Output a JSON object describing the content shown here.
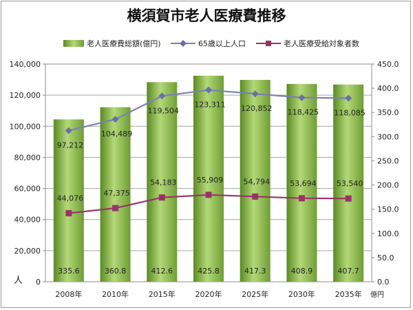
{
  "chart_data": {
    "type": "bar",
    "title": "横須賀市老人医療費推移",
    "categories": [
      "2008年",
      "2010年",
      "2015年",
      "2020年",
      "2025年",
      "2030年",
      "2035年"
    ],
    "series": [
      {
        "name": "老人医療費総額(億円)",
        "type": "bar",
        "axis": "right",
        "values": [
          335.6,
          360.8,
          412.6,
          425.8,
          417.3,
          408.9,
          407.7
        ],
        "color": "#7aa843"
      },
      {
        "name": "65歳以上人口",
        "type": "line",
        "axis": "left",
        "values": [
          97212,
          104489,
          119504,
          123311,
          120852,
          118425,
          118085
        ],
        "color": "#7b7fb8"
      },
      {
        "name": "老人医療受給対象者数",
        "type": "line",
        "axis": "left",
        "values": [
          44076,
          47375,
          54183,
          55909,
          54794,
          53694,
          53540
        ],
        "color": "#993366"
      }
    ],
    "value_labels": {
      "bars": [
        "335.6",
        "360.8",
        "412.6",
        "425.8",
        "417.3",
        "408.9",
        "407.7"
      ],
      "line1": [
        "97,212",
        "104,489",
        "119,504",
        "123,311",
        "120,852",
        "118,425",
        "118,085"
      ],
      "line2": [
        "44,076",
        "47,375",
        "54,183",
        "55,909",
        "54,794",
        "53,694",
        "53,540"
      ]
    },
    "y_left": {
      "label": "人",
      "min": 0,
      "max": 140000,
      "ticks": [
        "0",
        "20,000",
        "40,000",
        "60,000",
        "80,000",
        "100,000",
        "120,000",
        "140,000"
      ]
    },
    "y_right": {
      "label": "億円",
      "min": 0,
      "max": 450,
      "ticks": [
        "0.0",
        "50.0",
        "100.0",
        "150.0",
        "200.0",
        "250.0",
        "300.0",
        "350.0",
        "400.0",
        "450.0"
      ]
    },
    "grid": true,
    "legend": "top"
  }
}
